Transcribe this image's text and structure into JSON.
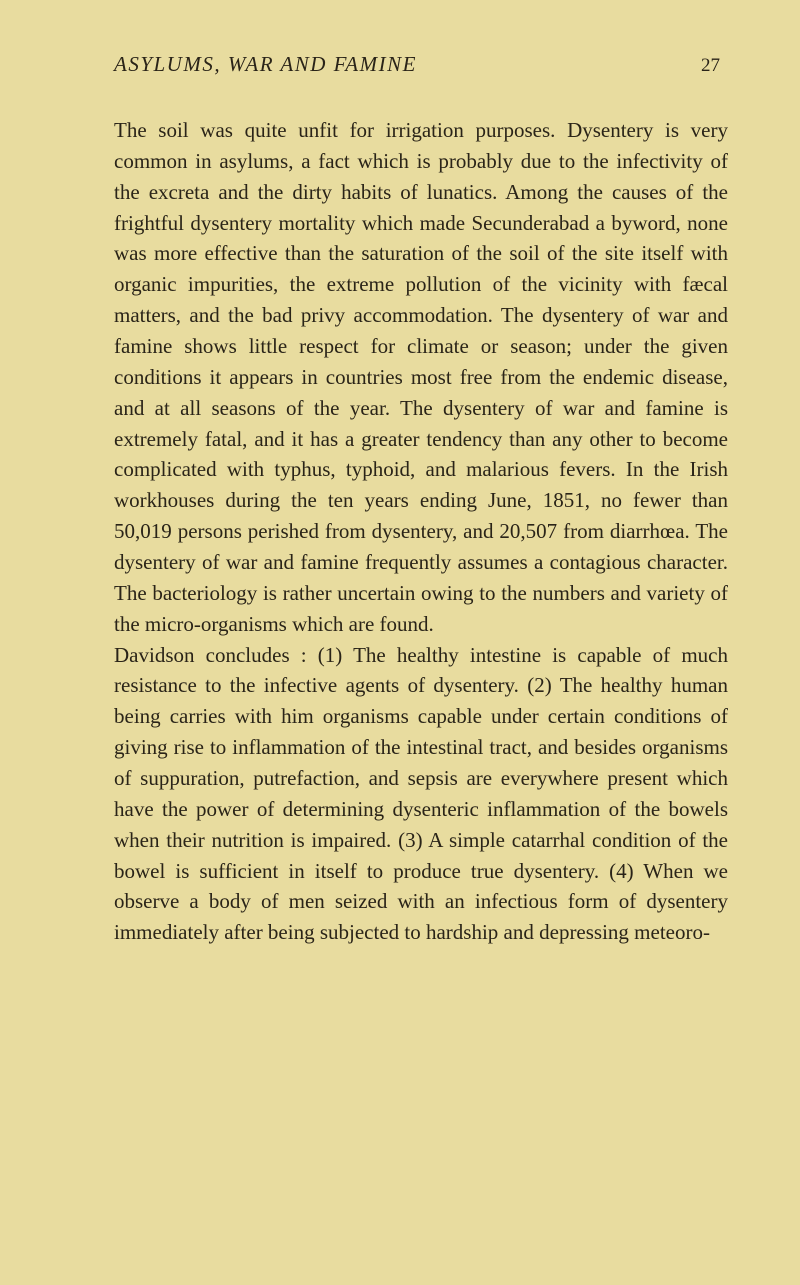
{
  "header": {
    "title": "ASYLUMS, WAR AND FAMINE",
    "page_number": "27"
  },
  "body": {
    "paragraph1": "The soil was quite unfit for irrigation purposes. Dysentery is very common in asylums, a fact which is probably due to the infectivity of the excreta and the dirty habits of lunatics. Among the causes of the frightful dysentery mortality which made Secunderabad a byword, none was more effective than the saturation of the soil of the site itself with organic impurities, the extreme pollution of the vicinity with fæcal matters, and the bad privy accommodation. The dysentery of war and famine shows little respect for climate or season; under the given conditions it appears in countries most free from the endemic disease, and at all seasons of the year. The dysentery of war and famine is extremely fatal, and it has a greater tendency than any other to become complicated with typhus, typhoid, and malarious fevers. In the Irish workhouses during the ten years ending June, 1851, no fewer than 50,019 persons perished from dysentery, and 20,507 from diarrhœa. The dysentery of war and famine frequently assumes a contagious character. The bacteriology is rather uncertain owing to the numbers and variety of the micro-organisms which are found.",
    "paragraph2": "Davidson concludes : (1) The healthy intestine is capable of much resistance to the infective agents of dysentery. (2) The healthy human being carries with him organisms capable under certain conditions of giving rise to inflammation of the intestinal tract, and besides organisms of suppuration, putrefaction, and sepsis are everywhere present which have the power of determining dysenteric inflammation of the bowels when their nutrition is impaired. (3) A simple catarrhal condition of the bowel is sufficient in itself to produce true dysentery. (4) When we observe a body of men seized with an infectious form of dysentery immediately after being subjected to hardship and depressing meteoro-"
  },
  "colors": {
    "background": "#e8dc9f",
    "text": "#2a2418"
  },
  "typography": {
    "body_fontsize": 21,
    "header_fontsize": 21,
    "line_height": 1.47
  }
}
